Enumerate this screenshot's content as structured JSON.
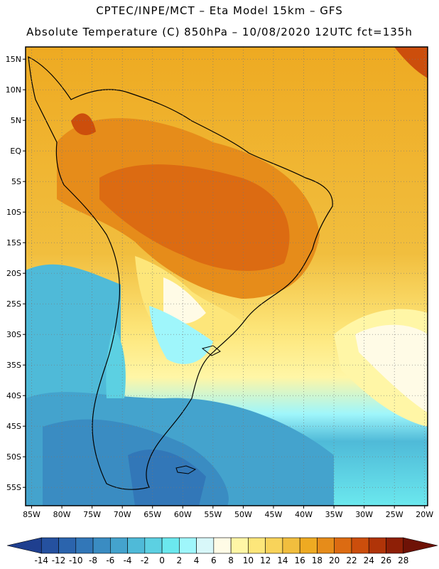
{
  "header": {
    "line1": "CPTEC/INPE/MCT –  Eta Model 15km – GFS",
    "line2": "Absolute Temperature (C) 850hPa – 10/08/2020 12UTC fct=135h"
  },
  "map": {
    "lon_range": [
      -86,
      -19.5
    ],
    "lat_range": [
      -58,
      17
    ],
    "lon_ticks": [
      -85,
      -80,
      -75,
      -70,
      -65,
      -60,
      -55,
      -50,
      -45,
      -40,
      -35,
      -30,
      -25,
      -20
    ],
    "lon_labels": [
      "85W",
      "80W",
      "75W",
      "70W",
      "65W",
      "60W",
      "55W",
      "50W",
      "45W",
      "40W",
      "35W",
      "30W",
      "25W",
      "20W"
    ],
    "lat_ticks": [
      15,
      10,
      5,
      0,
      -5,
      -10,
      -15,
      -20,
      -25,
      -30,
      -35,
      -40,
      -45,
      -50,
      -55
    ],
    "lat_labels": [
      "15N",
      "10N",
      "5N",
      "EQ",
      "5S",
      "10S",
      "15S",
      "20S",
      "25S",
      "30S",
      "35S",
      "40S",
      "45S",
      "50S",
      "55S"
    ],
    "grid": "dotted"
  },
  "colorbar": {
    "levels": [
      -14,
      -12,
      -10,
      -8,
      -6,
      -4,
      -2,
      0,
      2,
      4,
      6,
      8,
      10,
      12,
      14,
      16,
      18,
      20,
      22,
      24,
      26,
      28
    ],
    "colors": [
      "#1f3f8f",
      "#25519f",
      "#2b64ad",
      "#3277b8",
      "#3a8cc2",
      "#44a3cd",
      "#4fbad8",
      "#5cd0e2",
      "#6be8ee",
      "#9ff6fb",
      "#d8f7f9",
      "#fffbe6",
      "#fff6a6",
      "#fde67a",
      "#f8d35a",
      "#f1be3e",
      "#eeaa22",
      "#e68c1a",
      "#dc6b12",
      "#cc4e0c",
      "#b03408",
      "#8e1f06",
      "#6e1206"
    ],
    "labels": [
      "-14",
      "-12",
      "-10",
      "-8",
      "-6",
      "-4",
      "-2",
      "0",
      "2",
      "4",
      "6",
      "8",
      "10",
      "12",
      "14",
      "16",
      "18",
      "20",
      "22",
      "24",
      "26",
      "28"
    ]
  }
}
